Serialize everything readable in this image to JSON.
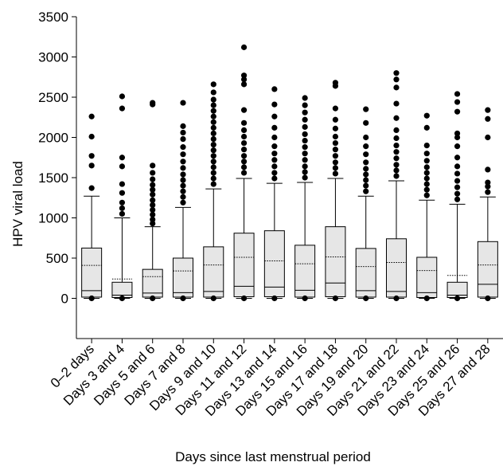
{
  "chart_data": {
    "type": "box",
    "title": "",
    "xlabel": "Days since last menstrual period",
    "ylabel": "HPV viral load",
    "ylim": [
      -500,
      3500
    ],
    "yticks": [
      0,
      500,
      1000,
      1500,
      2000,
      2500,
      3000,
      3500
    ],
    "grid": false,
    "box_fill": "#e6e6e6",
    "categories": [
      "0–2 days",
      "Days 3 and 4",
      "Days 5 and 6",
      "Days 7 and 8",
      "Days 9 and 10",
      "Days 11 and 12",
      "Days 13 and 14",
      "Days 15 and 16",
      "Days 17 and 18",
      "Days 19 and 20",
      "Days 21 and 22",
      "Days 23 and 24",
      "Days 25 and 26",
      "Days 27 and 28"
    ],
    "boxes": [
      {
        "whisker_low": 0,
        "q1": 15,
        "median": 95,
        "q3": 625,
        "whisker_high": 1270,
        "mean": 410,
        "outliers": [
          0,
          1370,
          1650,
          1770,
          2010,
          2260
        ]
      },
      {
        "whisker_low": 0,
        "q1": 10,
        "median": 40,
        "q3": 200,
        "whisker_high": 1000,
        "mean": 240,
        "outliers": [
          0,
          1050,
          1120,
          1190,
          1310,
          1420,
          1640,
          1750,
          2360,
          2510
        ]
      },
      {
        "whisker_low": 0,
        "q1": 15,
        "median": 65,
        "q3": 360,
        "whisker_high": 890,
        "mean": 270,
        "outliers": [
          0,
          930,
          980,
          1040,
          1100,
          1160,
          1220,
          1290,
          1350,
          1410,
          1480,
          1560,
          1650,
          2410,
          2430
        ]
      },
      {
        "whisker_low": 0,
        "q1": 15,
        "median": 70,
        "q3": 500,
        "whisker_high": 1130,
        "mean": 340,
        "outliers": [
          0,
          1190,
          1260,
          1330,
          1400,
          1470,
          1540,
          1620,
          1700,
          1790,
          1880,
          1980,
          2060,
          2140,
          2430
        ]
      },
      {
        "whisker_low": 0,
        "q1": 15,
        "median": 85,
        "q3": 640,
        "whisker_high": 1360,
        "mean": 415,
        "outliers": [
          0,
          1420,
          1490,
          1560,
          1630,
          1700,
          1770,
          1840,
          1910,
          1980,
          2050,
          2120,
          2190,
          2260,
          2330,
          2400,
          2470,
          2560,
          2660
        ]
      },
      {
        "whisker_low": 0,
        "q1": 20,
        "median": 150,
        "q3": 810,
        "whisker_high": 1490,
        "mean": 510,
        "outliers": [
          0,
          1560,
          1630,
          1700,
          1770,
          1850,
          1930,
          2010,
          2090,
          2180,
          2340,
          2660,
          2720,
          2770,
          3120
        ]
      },
      {
        "whisker_low": 0,
        "q1": 20,
        "median": 140,
        "q3": 840,
        "whisker_high": 1430,
        "mean": 465,
        "outliers": [
          0,
          1490,
          1560,
          1640,
          1720,
          1800,
          1890,
          2000,
          2120,
          2260,
          2410,
          2600
        ]
      },
      {
        "whisker_low": 0,
        "q1": 15,
        "median": 100,
        "q3": 660,
        "whisker_high": 1440,
        "mean": 430,
        "outliers": [
          0,
          1500,
          1570,
          1640,
          1720,
          1800,
          1880,
          1960,
          2040,
          2130,
          2220,
          2310,
          2400,
          2490
        ]
      },
      {
        "whisker_low": 0,
        "q1": 20,
        "median": 190,
        "q3": 890,
        "whisker_high": 1490,
        "mean": 515,
        "outliers": [
          0,
          1550,
          1620,
          1690,
          1770,
          1850,
          1930,
          2010,
          2110,
          2220,
          2360,
          2640,
          2680
        ]
      },
      {
        "whisker_low": 0,
        "q1": 15,
        "median": 95,
        "q3": 620,
        "whisker_high": 1270,
        "mean": 395,
        "outliers": [
          0,
          1330,
          1400,
          1470,
          1540,
          1610,
          1690,
          1790,
          1890,
          2000,
          2180,
          2350
        ]
      },
      {
        "whisker_low": 0,
        "q1": 15,
        "median": 85,
        "q3": 740,
        "whisker_high": 1460,
        "mean": 445,
        "outliers": [
          0,
          1520,
          1590,
          1660,
          1740,
          1820,
          1900,
          1990,
          2090,
          2240,
          2420,
          2620,
          2720,
          2800
        ]
      },
      {
        "whisker_low": 0,
        "q1": 10,
        "median": 70,
        "q3": 510,
        "whisker_high": 1220,
        "mean": 345,
        "outliers": [
          0,
          1280,
          1350,
          1420,
          1490,
          1560,
          1630,
          1710,
          1800,
          1900,
          2120,
          2270
        ]
      },
      {
        "whisker_low": 0,
        "q1": 10,
        "median": 40,
        "q3": 200,
        "whisker_high": 1170,
        "mean": 285,
        "outliers": [
          0,
          1230,
          1300,
          1380,
          1460,
          1550,
          1640,
          1750,
          1890,
          2000,
          2050,
          2320,
          2440,
          2540
        ]
      },
      {
        "whisker_low": 0,
        "q1": 15,
        "median": 175,
        "q3": 705,
        "whisker_high": 1260,
        "mean": 415,
        "outliers": [
          0,
          1320,
          1390,
          1440,
          1600,
          2000,
          2230,
          2340
        ]
      }
    ]
  }
}
